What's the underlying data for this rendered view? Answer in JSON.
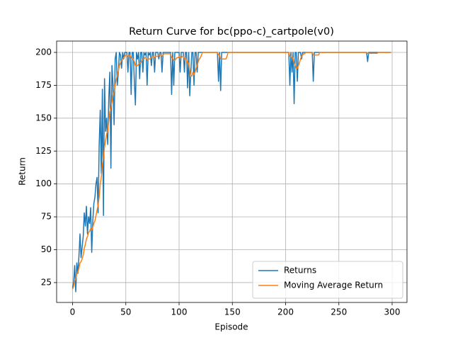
{
  "chart_data": {
    "type": "line",
    "title": "Return Curve for bc(ppo-c)_cartpole(v0)",
    "xlabel": "Episode",
    "ylabel": "Return",
    "x": [
      0,
      1,
      2,
      3,
      4,
      5,
      6,
      7,
      8,
      9,
      10,
      11,
      12,
      13,
      14,
      15,
      16,
      17,
      18,
      19,
      20,
      21,
      22,
      23,
      24,
      25,
      26,
      27,
      28,
      29,
      30,
      31,
      32,
      33,
      34,
      35,
      36,
      37,
      38,
      39,
      40,
      41,
      42,
      43,
      44,
      45,
      46,
      47,
      48,
      49,
      50,
      51,
      52,
      53,
      54,
      55,
      56,
      57,
      58,
      59,
      60,
      61,
      62,
      63,
      64,
      65,
      66,
      67,
      68,
      69,
      70,
      71,
      72,
      73,
      74,
      75,
      76,
      77,
      78,
      79,
      80,
      81,
      82,
      83,
      84,
      85,
      86,
      87,
      88,
      89,
      90,
      91,
      92,
      93,
      94,
      95,
      96,
      97,
      98,
      99,
      100,
      101,
      102,
      103,
      104,
      105,
      106,
      107,
      108,
      109,
      110,
      111,
      112,
      113,
      114,
      115,
      116,
      117,
      118,
      119,
      120,
      121,
      122,
      123,
      124,
      125,
      126,
      127,
      128,
      129,
      130,
      131,
      132,
      133,
      134,
      135,
      136,
      137,
      138,
      139,
      140,
      141,
      142,
      143,
      144,
      145,
      146,
      147,
      148,
      149,
      150,
      151,
      152,
      153,
      154,
      155,
      156,
      157,
      158,
      159,
      160,
      161,
      162,
      163,
      164,
      165,
      166,
      167,
      168,
      169,
      170,
      171,
      172,
      173,
      174,
      175,
      176,
      177,
      178,
      179,
      180,
      181,
      182,
      183,
      184,
      185,
      186,
      187,
      188,
      189,
      190,
      191,
      192,
      193,
      194,
      195,
      196,
      197,
      198,
      199,
      200,
      201,
      202,
      203,
      204,
      205,
      206,
      207,
      208,
      209,
      210,
      211,
      212,
      213,
      214,
      215,
      216,
      217,
      218,
      219,
      220,
      221,
      222,
      223,
      224,
      225,
      226,
      227,
      228,
      229,
      230,
      231,
      232,
      233,
      234,
      235,
      236,
      237,
      238,
      239,
      240,
      241,
      242,
      243,
      244,
      245,
      246,
      247,
      248,
      249,
      250,
      251,
      252,
      253,
      254,
      255,
      256,
      257,
      258,
      259,
      260,
      261,
      262,
      263,
      264,
      265,
      266,
      267,
      268,
      269,
      270,
      271,
      272,
      273,
      274,
      275,
      276,
      277,
      278,
      279,
      280,
      281,
      282,
      283,
      284,
      285,
      286,
      287,
      288,
      289,
      290,
      291,
      292,
      293,
      294,
      295,
      296,
      297,
      298,
      299
    ],
    "series": [
      {
        "name": "Returns",
        "color": "#1f77b4",
        "values": [
          21,
          25,
          38,
          18,
          40,
          32,
          45,
          62,
          44,
          52,
          60,
          78,
          68,
          83,
          62,
          75,
          70,
          82,
          48,
          72,
          85,
          90,
          100,
          105,
          78,
          130,
          156,
          108,
          172,
          76,
          180,
          140,
          150,
          130,
          165,
          185,
          112,
          190,
          175,
          145,
          195,
          200,
          175,
          185,
          200,
          198,
          188,
          200,
          195,
          200,
          200,
          200,
          185,
          200,
          200,
          168,
          200,
          200,
          178,
          160,
          200,
          195,
          200,
          180,
          200,
          200,
          185,
          200,
          198,
          200,
          175,
          200,
          198,
          200,
          190,
          200,
          200,
          185,
          200,
          200,
          200,
          195,
          200,
          200,
          185,
          200,
          200,
          200,
          200,
          200,
          200,
          200,
          200,
          168,
          200,
          175,
          200,
          200,
          200,
          200,
          200,
          185,
          200,
          200,
          200,
          185,
          200,
          200,
          173,
          200,
          167,
          185,
          200,
          200,
          175,
          200,
          200,
          185,
          200,
          200,
          200,
          200,
          200,
          200,
          200,
          200,
          200,
          200,
          200,
          200,
          200,
          200,
          200,
          200,
          200,
          200,
          200,
          178,
          200,
          171,
          200,
          200,
          200,
          200,
          200,
          200,
          200,
          200,
          200,
          200,
          200,
          200,
          200,
          200,
          200,
          200,
          200,
          200,
          200,
          200,
          200,
          200,
          200,
          200,
          200,
          200,
          200,
          200,
          200,
          200,
          200,
          200,
          200,
          200,
          200,
          200,
          200,
          200,
          200,
          200,
          200,
          200,
          200,
          200,
          200,
          200,
          200,
          200,
          200,
          200,
          200,
          200,
          200,
          200,
          200,
          200,
          200,
          200,
          200,
          200,
          200,
          200,
          200,
          200,
          175,
          200,
          185,
          200,
          161,
          200,
          200,
          178,
          200,
          200,
          200,
          195,
          200,
          200,
          200,
          200,
          200,
          200,
          200,
          200,
          200,
          200,
          178,
          200,
          200,
          200,
          200,
          200,
          200,
          200,
          200,
          200,
          200,
          200,
          200,
          200,
          200,
          200,
          200,
          200,
          200,
          200,
          200,
          200,
          200,
          200,
          200,
          200,
          200,
          200,
          200,
          200,
          200,
          200,
          200,
          200,
          200,
          200,
          200,
          200,
          200,
          200,
          200,
          200,
          200,
          200,
          200,
          200,
          200,
          200,
          200,
          200,
          200,
          193,
          200,
          200,
          200,
          200,
          200,
          200,
          200,
          200,
          200,
          200,
          200,
          200,
          200,
          200,
          200,
          200,
          200,
          200,
          200,
          200,
          200,
          200
        ]
      },
      {
        "name": "Moving Average Return",
        "color": "#ff7f0e",
        "values": [
          20,
          22,
          26,
          28,
          32,
          33,
          36,
          40,
          41,
          43,
          46,
          51,
          54,
          58,
          60,
          63,
          64,
          66,
          65,
          67,
          70,
          72,
          76,
          80,
          84,
          90,
          100,
          105,
          115,
          120,
          128,
          133,
          138,
          140,
          148,
          155,
          158,
          162,
          168,
          170,
          175,
          180,
          182,
          186,
          190,
          192,
          194,
          195,
          196,
          197,
          198,
          198,
          197,
          197,
          198,
          196,
          195,
          195,
          193,
          190,
          190,
          190,
          191,
          192,
          192,
          194,
          195,
          195,
          196,
          196,
          194,
          195,
          195,
          195,
          196,
          197,
          197,
          196,
          197,
          197,
          197,
          198,
          198,
          198,
          197,
          198,
          199,
          199,
          199,
          199,
          199,
          199,
          199,
          196,
          196,
          194,
          194,
          195,
          196,
          196,
          197,
          196,
          196,
          197,
          197,
          195,
          195,
          195,
          192,
          192,
          186,
          182,
          182,
          185,
          183,
          185,
          188,
          190,
          193,
          195,
          196,
          198,
          200,
          200,
          200,
          200,
          200,
          200,
          200,
          200,
          200,
          200,
          200,
          200,
          200,
          200,
          200,
          198,
          198,
          195,
          195,
          195,
          195,
          195,
          195,
          197,
          200,
          200,
          200,
          200,
          200,
          200,
          200,
          200,
          200,
          200,
          200,
          200,
          200,
          200,
          200,
          200,
          200,
          200,
          200,
          200,
          200,
          200,
          200,
          200,
          200,
          200,
          200,
          200,
          200,
          200,
          200,
          200,
          200,
          200,
          200,
          200,
          200,
          200,
          200,
          200,
          200,
          200,
          200,
          200,
          200,
          200,
          200,
          200,
          200,
          200,
          200,
          200,
          200,
          200,
          200,
          200,
          200,
          200,
          197,
          197,
          196,
          196,
          192,
          190,
          188,
          188,
          190,
          192,
          195,
          197,
          198,
          199,
          199,
          200,
          200,
          200,
          200,
          200,
          200,
          200,
          198,
          198,
          198,
          198,
          198,
          198,
          200,
          200,
          200,
          200,
          200,
          200,
          200,
          200,
          200,
          200,
          200,
          200,
          200,
          200,
          200,
          200,
          200,
          200,
          200,
          200,
          200,
          200,
          200,
          200,
          200,
          200,
          200,
          200,
          200,
          200,
          200,
          200,
          200,
          200,
          200,
          200,
          200,
          200,
          200,
          200,
          200,
          200,
          200,
          200,
          200,
          199.3,
          199.3,
          199.3,
          199.3,
          199.3,
          199.3,
          199.3,
          199.3,
          199.3,
          199.3,
          200,
          200,
          200,
          200,
          200,
          200,
          200,
          200,
          200,
          200,
          200,
          200,
          200
        ]
      }
    ],
    "xlim": [
      -14.95,
      313.95
    ],
    "xticks": [
      0,
      50,
      100,
      150,
      200,
      250,
      300
    ],
    "ylim": [
      9.9,
      208.6
    ],
    "yticks": [
      25,
      50,
      75,
      100,
      125,
      150,
      175,
      200
    ],
    "grid": true,
    "legend": "lower right"
  }
}
